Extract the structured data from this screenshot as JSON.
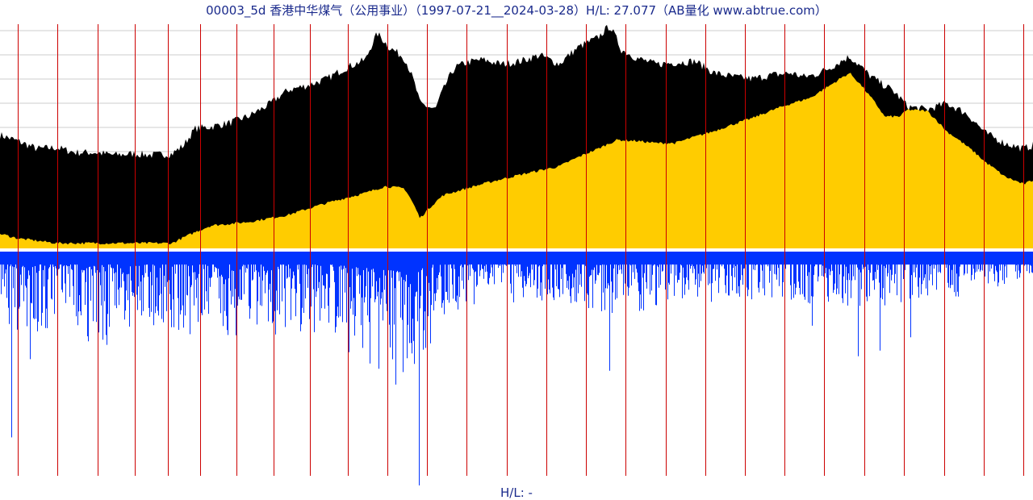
{
  "title": "00003_5d 香港中华煤气（公用事业）（1997-07-21__2024-03-28）H/L: 27.077（AB量化  www.abtrue.com）",
  "footer": "H/L: -",
  "colors": {
    "price_fill": "#000000",
    "lower_fill": "#ffcc00",
    "volume": "#0033ff",
    "grid": "#cccccc",
    "year_line": "#cc0000",
    "text": "#1a2a8c"
  },
  "chart_data": [
    {
      "type": "area",
      "title": "00003_5d 香港中华煤气（公用事业）（1997-07-21__2024-03-28）H/L: 27.077（AB量化  www.abtrue.com）",
      "x_range": [
        "1997-07-21",
        "2024-03-28"
      ],
      "ratio_high_low": 27.077,
      "grid": true,
      "log_scale": true,
      "series": [
        {
          "role": "upper",
          "x": [
            1997.55,
            1998.0,
            1998.5,
            1999.0,
            1999.5,
            2000.0,
            2000.5,
            2001.0,
            2001.5,
            2002.0,
            2002.3,
            2002.6,
            2003.0,
            2003.5,
            2004.0,
            2004.5,
            2005.0,
            2005.5,
            2006.0,
            2006.5,
            2007.0,
            2007.3,
            2007.6,
            2008.0,
            2008.4,
            2008.8,
            2009.0,
            2009.3,
            2009.6,
            2010.0,
            2010.5,
            2011.0,
            2011.5,
            2012.0,
            2012.5,
            2013.0,
            2013.3,
            2013.6,
            2014.0,
            2014.5,
            2015.0,
            2015.5,
            2016.0,
            2016.5,
            2017.0,
            2017.5,
            2018.0,
            2018.3,
            2018.6,
            2019.0,
            2019.5,
            2020.0,
            2020.3,
            2020.6,
            2021.0,
            2021.5,
            2022.0,
            2022.5,
            2023.0,
            2023.5,
            2024.0,
            2024.24
          ],
          "values": [
            0.68,
            0.62,
            0.55,
            0.56,
            0.52,
            0.52,
            0.5,
            0.51,
            0.5,
            0.51,
            0.58,
            0.75,
            0.77,
            0.82,
            0.91,
            1.08,
            1.35,
            1.45,
            1.6,
            1.9,
            2.15,
            3.2,
            2.6,
            2.2,
            1.1,
            1.0,
            1.35,
            1.9,
            2.05,
            2.15,
            2.0,
            2.1,
            2.3,
            2.0,
            2.6,
            3.0,
            3.6,
            2.5,
            2.2,
            2.0,
            2.05,
            2.1,
            1.75,
            1.65,
            1.6,
            1.7,
            1.75,
            1.65,
            1.7,
            1.9,
            2.25,
            1.7,
            1.5,
            1.35,
            1.05,
            1.0,
            1.1,
            0.95,
            0.7,
            0.6,
            0.55,
            0.58
          ]
        },
        {
          "role": "lower",
          "x": [
            1997.55,
            1998.0,
            1999.0,
            2000.0,
            2001.0,
            2002.0,
            2002.5,
            2003.0,
            2004.0,
            2005.0,
            2006.0,
            2007.0,
            2007.5,
            2008.0,
            2008.4,
            2009.0,
            2010.0,
            2011.0,
            2012.0,
            2013.0,
            2013.5,
            2014.0,
            2014.5,
            2015.0,
            2016.0,
            2016.5,
            2017.0,
            2018.0,
            2018.5,
            2019.0,
            2019.5,
            2020.0,
            2020.4,
            2020.8,
            2021.0,
            2021.5,
            2022.0,
            2022.5,
            2023.0,
            2023.5,
            2024.0,
            2024.24
          ],
          "values": [
            0.15,
            0.14,
            0.13,
            0.13,
            0.13,
            0.13,
            0.15,
            0.17,
            0.18,
            0.2,
            0.24,
            0.28,
            0.31,
            0.3,
            0.19,
            0.27,
            0.32,
            0.37,
            0.42,
            0.55,
            0.63,
            0.62,
            0.6,
            0.6,
            0.72,
            0.8,
            0.88,
            1.1,
            1.2,
            1.45,
            1.75,
            1.25,
            0.9,
            0.9,
            1.0,
            0.98,
            0.72,
            0.58,
            0.45,
            0.36,
            0.32,
            0.34
          ]
        }
      ]
    },
    {
      "type": "bar",
      "title": "H/L: -",
      "x_range": [
        "1997-07-21",
        "2024-03-28"
      ],
      "series": [
        {
          "role": "volume",
          "x": [
            1997.55,
            1998.0,
            1998.3,
            1998.6,
            1999.0,
            1999.5,
            2000.0,
            2000.5,
            2001.0,
            2001.5,
            2002.0,
            2002.5,
            2003.0,
            2003.5,
            2004.0,
            2004.5,
            2005.0,
            2005.5,
            2006.0,
            2006.5,
            2007.0,
            2007.5,
            2008.0,
            2008.5,
            2009.0,
            2010.0,
            2011.0,
            2012.0,
            2013.0,
            2014.0,
            2015.0,
            2016.0,
            2017.0,
            2018.0,
            2019.0,
            2020.0,
            2021.0,
            2022.0,
            2023.0,
            2024.24
          ],
          "values": [
            0.3,
            0.35,
            0.45,
            0.3,
            0.35,
            0.3,
            0.4,
            0.3,
            0.35,
            0.3,
            0.3,
            0.35,
            0.3,
            0.35,
            0.3,
            0.35,
            0.3,
            0.35,
            0.3,
            0.4,
            0.45,
            0.5,
            0.55,
            0.45,
            0.25,
            0.2,
            0.2,
            0.2,
            0.25,
            0.25,
            0.2,
            0.2,
            0.2,
            0.2,
            0.22,
            0.22,
            0.2,
            0.2,
            0.15,
            0.1
          ]
        }
      ]
    }
  ]
}
